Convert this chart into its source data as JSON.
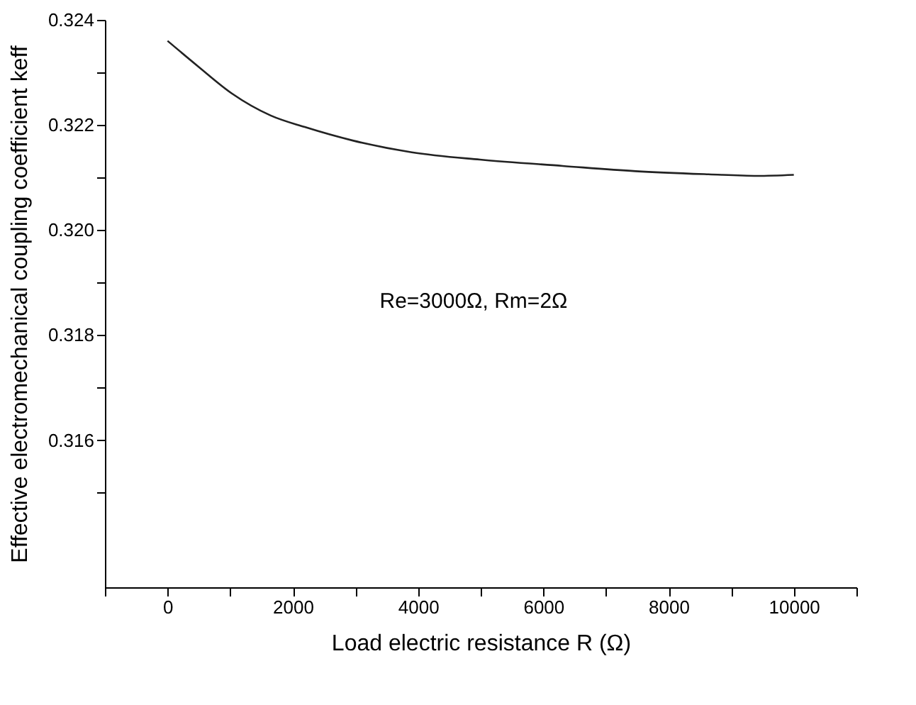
{
  "chart_data": {
    "type": "line",
    "xlabel": "Load electric resistance R (Ω)",
    "ylabel": "Effective electromechanical coupling coefficient keff",
    "x": [
      0,
      482,
      1026,
      1647,
      2191,
      2968,
      3900,
      4988,
      6309,
      7475,
      8640,
      9417,
      10000
    ],
    "series": [
      {
        "color": "#222222",
        "values": [
          0.3236,
          0.32312,
          0.3226,
          0.32218,
          0.32196,
          0.3217,
          0.32148,
          0.32134,
          0.32122,
          0.32112,
          0.32106,
          0.32103,
          0.32105
        ]
      }
    ],
    "xlim": [
      -1000,
      11000
    ],
    "xticks": [
      {
        "value": -1000,
        "label": null
      },
      0,
      {
        "value": 1000,
        "label": null
      },
      2000,
      {
        "value": 3000,
        "label": null
      },
      4000,
      {
        "value": 5000,
        "label": null
      },
      6000,
      {
        "value": 7000,
        "label": null
      },
      8000,
      {
        "value": 9000,
        "label": null
      },
      10000,
      {
        "value": 11000,
        "label": null
      }
    ],
    "ylim": [
      0.3132,
      0.324
    ],
    "yticks": [
      {
        "value": 0.315,
        "label": null
      },
      0.316,
      {
        "value": 0.317,
        "label": null
      },
      0.318,
      {
        "value": 0.319,
        "label": null
      },
      {
        "value": 0.32,
        "label": "0.320"
      },
      {
        "value": 0.321,
        "label": null
      },
      0.322,
      {
        "value": 0.323,
        "label": null
      },
      0.324
    ],
    "annotations": [
      "Re=3000Ω, Rm=2Ω"
    ],
    "grid": false,
    "legend": false,
    "marker": "none",
    "line_style": "solid"
  }
}
